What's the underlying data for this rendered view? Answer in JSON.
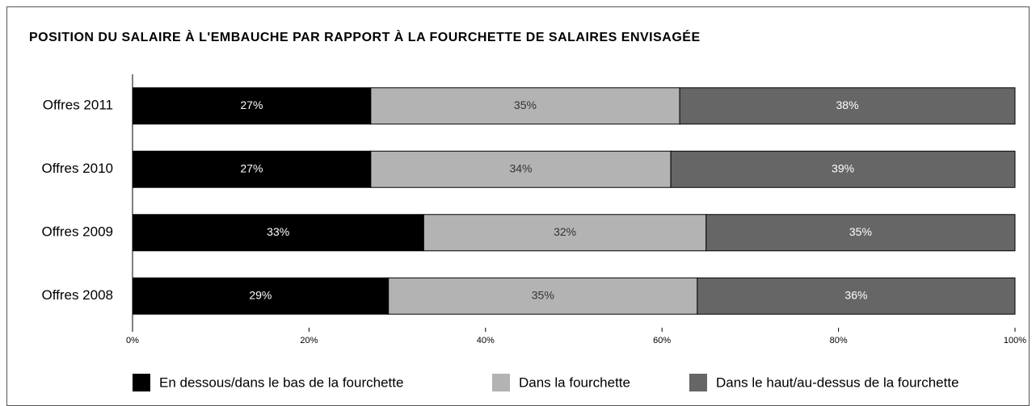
{
  "chart_data": {
    "type": "stacked_barh",
    "title": "POSITION DU SALAIRE À L'EMBAUCHE PAR RAPPORT À LA FOURCHETTE DE SALAIRES ENVISAGÉE",
    "categories": [
      "Offres 2011",
      "Offres 2010",
      "Offres 2009",
      "Offres 2008"
    ],
    "series": [
      {
        "name": "En dessous/dans le bas de la fourchette",
        "color": "#000000",
        "values": [
          27,
          27,
          33,
          29
        ],
        "value_labels": [
          "27%",
          "27%",
          "33%",
          "29%"
        ]
      },
      {
        "name": "Dans la fourchette",
        "color": "#b3b3b3",
        "values": [
          35,
          34,
          32,
          35
        ],
        "value_labels": [
          "35%",
          "34%",
          "32%",
          "35%"
        ]
      },
      {
        "name": "Dans le haut/au-dessus de la fourchette",
        "color": "#666666",
        "values": [
          38,
          39,
          35,
          36
        ],
        "value_labels": [
          "38%",
          "39%",
          "35%",
          "36%"
        ]
      }
    ],
    "xlim": [
      0,
      100
    ],
    "xticks": [
      {
        "value": 0,
        "label": "0%"
      },
      {
        "value": 20,
        "label": "20%"
      },
      {
        "value": 40,
        "label": "40%"
      },
      {
        "value": 60,
        "label": "60%"
      },
      {
        "value": 80,
        "label": "80%"
      },
      {
        "value": 100,
        "label": "100%"
      }
    ],
    "legend": "bottom"
  }
}
